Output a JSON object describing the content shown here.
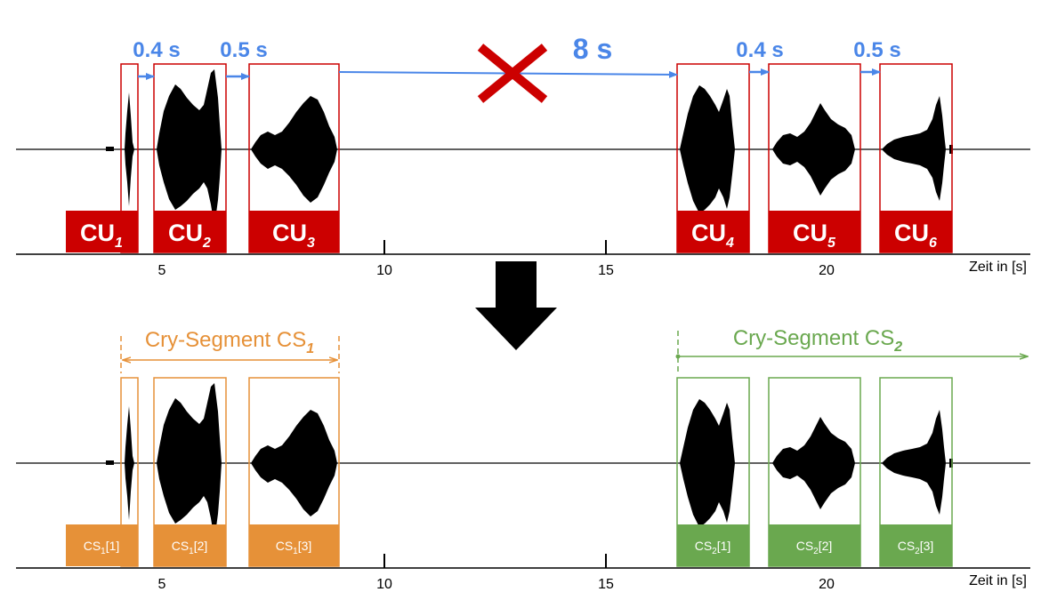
{
  "colors": {
    "cu": "#cc0000",
    "cs1": "#e69138",
    "cs2": "#6aa84f",
    "gap": "#4a86e8",
    "waveform": "#000000",
    "axis": "#000000"
  },
  "axis": {
    "ticks": [
      "5",
      "10",
      "15",
      "20"
    ],
    "title": "Zeit in [s]"
  },
  "top": {
    "gaps": [
      "0.4 s",
      "0.5 s",
      "8 s",
      "0.4 s",
      "0.5 s"
    ],
    "units": [
      {
        "base": "CU",
        "sub": "1"
      },
      {
        "base": "CU",
        "sub": "2"
      },
      {
        "base": "CU",
        "sub": "3"
      },
      {
        "base": "CU",
        "sub": "4"
      },
      {
        "base": "CU",
        "sub": "5"
      },
      {
        "base": "CU",
        "sub": "6"
      }
    ],
    "cross_icon": "cross-icon"
  },
  "transition_icon": "down-arrow-icon",
  "bottom": {
    "segments": [
      {
        "base": "Cry-Segment CS",
        "sub": "1"
      },
      {
        "base": "Cry-Segment CS",
        "sub": "2"
      }
    ],
    "units": [
      {
        "base": "CS",
        "sub": "1",
        "idx": "[1]"
      },
      {
        "base": "CS",
        "sub": "1",
        "idx": "[2]"
      },
      {
        "base": "CS",
        "sub": "1",
        "idx": "[3]"
      },
      {
        "base": "CS",
        "sub": "2",
        "idx": "[1]"
      },
      {
        "base": "CS",
        "sub": "2",
        "idx": "[2]"
      },
      {
        "base": "CS",
        "sub": "2",
        "idx": "[3]"
      }
    ]
  }
}
